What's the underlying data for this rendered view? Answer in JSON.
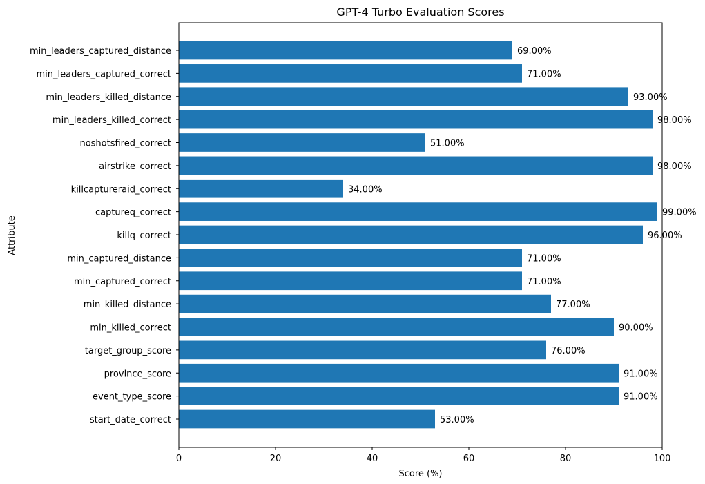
{
  "chart_data": {
    "type": "bar",
    "orientation": "horizontal",
    "title": "GPT-4 Turbo Evaluation Scores",
    "xlabel": "Score (%)",
    "ylabel": "Attribute",
    "xlim": [
      0,
      100
    ],
    "xticks": [
      0,
      20,
      40,
      60,
      80,
      100
    ],
    "grid": false,
    "bar_color": "#1f77b4",
    "categories": [
      "min_leaders_captured_distance",
      "min_leaders_captured_correct",
      "min_leaders_killed_distance",
      "min_leaders_killed_correct",
      "noshotsfired_correct",
      "airstrike_correct",
      "killcaptureraid_correct",
      "captureq_correct",
      "killq_correct",
      "min_captured_distance",
      "min_captured_correct",
      "min_killed_distance",
      "min_killed_correct",
      "target_group_score",
      "province_score",
      "event_type_score",
      "start_date_correct"
    ],
    "values": [
      69,
      71,
      93,
      98,
      51,
      98,
      34,
      99,
      96,
      71,
      71,
      77,
      90,
      76,
      91,
      91,
      53
    ],
    "data_labels": [
      "69.00%",
      "71.00%",
      "93.00%",
      "98.00%",
      "51.00%",
      "98.00%",
      "34.00%",
      "99.00%",
      "96.00%",
      "71.00%",
      "71.00%",
      "77.00%",
      "90.00%",
      "76.00%",
      "91.00%",
      "91.00%",
      "53.00%"
    ]
  }
}
